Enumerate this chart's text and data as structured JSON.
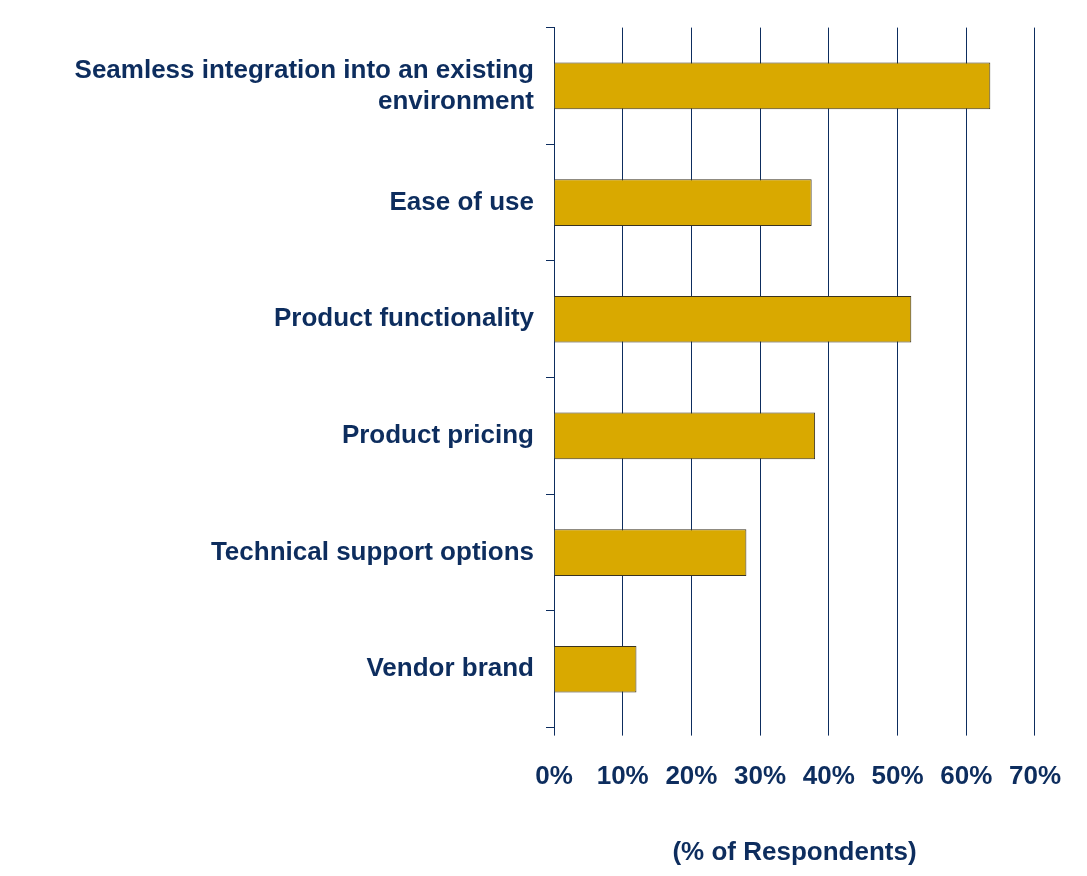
{
  "chart_data": {
    "type": "bar",
    "orientation": "horizontal",
    "xlabel": "(% of Respondents)",
    "categories": [
      "Seamless integration into an existing environment",
      "Ease of use",
      "Product functionality",
      "Product pricing",
      "Technical support options",
      "Vendor brand"
    ],
    "values": [
      63.5,
      37.5,
      52,
      38,
      28,
      12
    ],
    "color": "#d9a900",
    "xlim": [
      0,
      70
    ],
    "xticks": [
      {
        "value": 0,
        "label": "0%"
      },
      {
        "value": 10,
        "label": "10%"
      },
      {
        "value": 20,
        "label": "20%"
      },
      {
        "value": 30,
        "label": "30%"
      },
      {
        "value": 40,
        "label": "40%"
      },
      {
        "value": 50,
        "label": "50%"
      },
      {
        "value": 60,
        "label": "60%"
      },
      {
        "value": 70,
        "label": "70%"
      }
    ],
    "grid": "x",
    "legend": false
  }
}
